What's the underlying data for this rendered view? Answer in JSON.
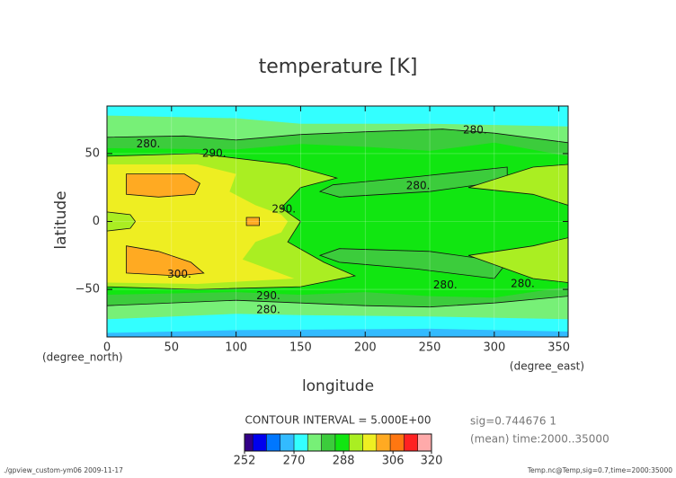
{
  "chart_data": {
    "type": "contour",
    "title": "temperature [K]",
    "x_label": "longitude",
    "y_label": "latitude",
    "x_unit": "(degree_east)",
    "y_unit": "(degree_north)",
    "xlim": [
      0,
      357.1875
    ],
    "ylim": [
      -85,
      85
    ],
    "xticks": [
      0,
      50,
      100,
      150,
      200,
      250,
      300,
      350
    ],
    "yticks": [
      {
        "value": -50,
        "label": "−50"
      },
      0,
      50
    ],
    "grid": true,
    "regions": [
      {
        "level": 270,
        "lon": [
          0,
          357.1875,
          357.1875,
          0
        ],
        "lat": [
          85,
          85,
          -85,
          -85
        ]
      },
      {
        "level": 265,
        "lon": [
          0,
          357.1875,
          357.1875,
          250,
          100,
          0
        ],
        "lat": [
          -85,
          -85,
          -81,
          -79,
          -80,
          -82
        ]
      },
      {
        "level": 275,
        "lon": [
          0,
          100,
          150,
          250,
          357.1875,
          357.1875,
          250,
          150,
          100,
          0
        ],
        "lat": [
          78,
          76,
          72,
          72,
          70,
          -72,
          -70,
          -69,
          -68,
          -72
        ]
      },
      {
        "level": 280,
        "lon": [
          0,
          60,
          100,
          150,
          200,
          260,
          300,
          357.1875,
          357.1875,
          300,
          250,
          200,
          150,
          100,
          0
        ],
        "lat": [
          62,
          63,
          60,
          64,
          66,
          68,
          65,
          58,
          -55,
          -60,
          -63,
          -62,
          -60,
          -58,
          -62
        ]
      },
      {
        "level": 285,
        "lon": [
          0,
          100,
          150,
          200,
          250,
          300,
          357.1875,
          357.1875,
          300,
          250,
          200,
          150,
          100,
          0
        ],
        "lat": [
          54,
          53,
          57,
          55,
          52,
          58,
          48,
          -48,
          -56,
          -55,
          -52,
          -54,
          -52,
          -54
        ]
      },
      {
        "level": 280,
        "lon": [
          310,
          240,
          175,
          165,
          180,
          250,
          310
        ],
        "lat": [
          40,
          33,
          27,
          22,
          18,
          22,
          30
        ]
      },
      {
        "level": 280,
        "lon": [
          310,
          250,
          180,
          165,
          180,
          240,
          300
        ],
        "lat": [
          -30,
          -22,
          -20,
          -25,
          -30,
          -35,
          -42
        ]
      },
      {
        "level": 290,
        "lon": [
          0,
          70,
          140,
          178,
          150,
          135,
          150,
          140,
          168,
          192,
          150,
          70,
          0
        ],
        "lat": [
          48,
          50,
          42,
          32,
          25,
          10,
          0,
          -15,
          -30,
          -40,
          -48,
          -50,
          -48
        ]
      },
      {
        "level": 290,
        "lon": [
          280,
          330,
          357.1875,
          357.1875,
          330
        ],
        "lat": [
          25,
          40,
          42,
          12,
          20
        ]
      },
      {
        "level": 290,
        "lon": [
          280,
          330,
          357.1875,
          357.1875,
          330
        ],
        "lat": [
          -25,
          -42,
          -45,
          -12,
          -18
        ]
      },
      {
        "level": 295,
        "lon": [
          0,
          70,
          100,
          95,
          115,
          135,
          140,
          135,
          115,
          105,
          145,
          70,
          0
        ],
        "lat": [
          42,
          42,
          35,
          22,
          12,
          5,
          0,
          -8,
          -15,
          -28,
          -42,
          -46,
          -45
        ]
      },
      {
        "level": 290,
        "lon": [
          0,
          18,
          22,
          18,
          0
        ],
        "lat": [
          7,
          5,
          0,
          -5,
          -7
        ]
      },
      {
        "level": 300,
        "lon": [
          15,
          60,
          72,
          68,
          40,
          15
        ],
        "lat": [
          35,
          35,
          28,
          20,
          18,
          20
        ]
      },
      {
        "level": 300,
        "lon": [
          15,
          40,
          65,
          75,
          55,
          15
        ],
        "lat": [
          -18,
          -22,
          -30,
          -38,
          -40,
          -38
        ]
      },
      {
        "level": 300,
        "lon": [
          108,
          118,
          118,
          108
        ],
        "lat": [
          3,
          3,
          -3,
          -3
        ]
      }
    ],
    "contour_lines": [
      280,
      290,
      300
    ],
    "contour_labels": [
      {
        "label": "280.",
        "lon": 32,
        "lat": 57
      },
      {
        "label": "280.",
        "lon": 285,
        "lat": 67
      },
      {
        "label": "280.",
        "lon": 241,
        "lat": 26
      },
      {
        "label": "290.",
        "lon": 83,
        "lat": 50
      },
      {
        "label": "290.",
        "lon": 137,
        "lat": 9
      },
      {
        "label": "300.",
        "lon": 56,
        "lat": -39
      },
      {
        "label": "290.",
        "lon": 125,
        "lat": -55
      },
      {
        "label": "280.",
        "lon": 125,
        "lat": -65
      },
      {
        "label": "280.",
        "lon": 262,
        "lat": -47
      },
      {
        "label": "280.",
        "lon": 322,
        "lat": -46
      }
    ],
    "colorbar": {
      "title": "CONTOUR INTERVAL = 5.000E+00",
      "bounds": [
        252,
        255,
        260,
        265,
        270,
        275,
        280,
        285,
        290,
        295,
        300,
        305,
        310,
        315,
        320
      ],
      "colors": [
        "#330088",
        "#0000ee",
        "#0077ff",
        "#33bbff",
        "#33ffff",
        "#77f077",
        "#3ccc3c",
        "#11e611",
        "#aaee22",
        "#eeee22",
        "#ffaa22",
        "#ff7711",
        "#ff2222",
        "#ffaaaa"
      ],
      "ticks": [
        252,
        270,
        288,
        306,
        320
      ]
    },
    "annotations": [
      "sig=0.744676 1",
      "(mean) time:2000..35000"
    ],
    "footer_left": "./gpview_custom-ym06  2009-11-17",
    "footer_right": "Temp.nc@Temp,sig=0.7,time=2000:35000"
  }
}
